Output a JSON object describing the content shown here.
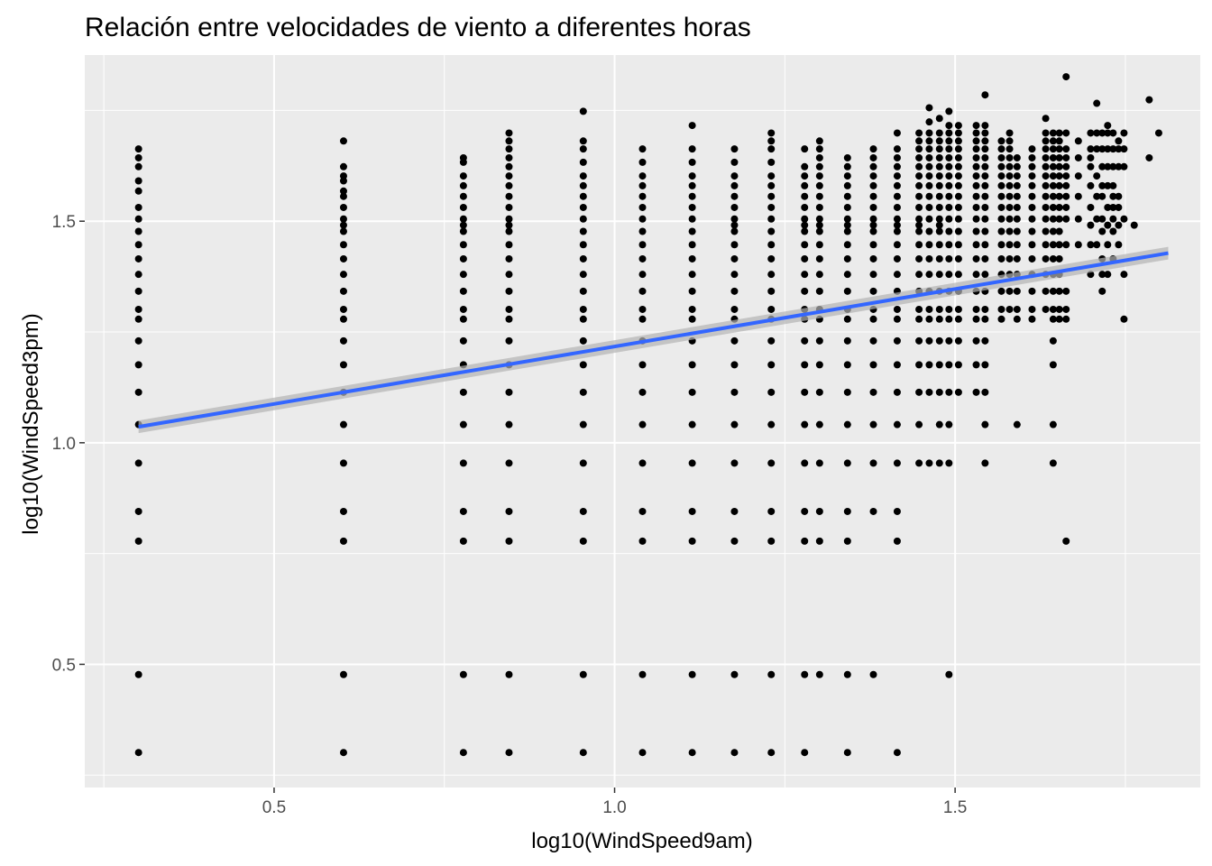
{
  "chart_data": {
    "type": "scatter",
    "title": "Relación entre velocidades de viento a diferentes horas",
    "xlabel": "log10(WindSpeed9am)",
    "ylabel": "log10(WindSpeed3pm)",
    "xlim": [
      0.222,
      1.86
    ],
    "ylim": [
      0.222,
      1.875
    ],
    "x_ticks": [
      0.5,
      1.0,
      1.5
    ],
    "x_tick_labels": [
      "0.5",
      "1.0",
      "1.5"
    ],
    "y_ticks": [
      0.5,
      1.0,
      1.5
    ],
    "y_tick_labels": [
      "0.5",
      "1.0",
      "1.5"
    ],
    "grid": true,
    "point_color": "#000000",
    "panel_background": "#EBEBEB",
    "grid_color": "#FFFFFF",
    "trend_line": {
      "method": "linear fit",
      "color": "#3366FF",
      "band_color": "#B3B3B3",
      "points": [
        [
          0.301,
          1.036
        ],
        [
          1.813,
          1.428
        ]
      ]
    },
    "columns": [
      {
        "x": 0.301,
        "y": [
          0.301,
          0.477,
          0.778,
          0.845,
          0.954,
          1.041,
          1.114,
          1.176,
          1.23,
          1.279,
          1.301,
          1.342,
          1.38,
          1.415,
          1.447,
          1.477,
          1.505,
          1.531,
          1.568,
          1.591,
          1.623,
          1.643,
          1.663
        ]
      },
      {
        "x": 0.602,
        "y": [
          0.301,
          0.477,
          0.778,
          0.845,
          0.954,
          1.041,
          1.114,
          1.176,
          1.23,
          1.279,
          1.301,
          1.342,
          1.38,
          1.415,
          1.447,
          1.477,
          1.491,
          1.505,
          1.531,
          1.556,
          1.568,
          1.591,
          1.602,
          1.623,
          1.681
        ]
      },
      {
        "x": 0.778,
        "y": [
          0.301,
          0.477,
          0.778,
          0.845,
          0.954,
          1.041,
          1.114,
          1.176,
          1.23,
          1.279,
          1.301,
          1.342,
          1.38,
          1.415,
          1.447,
          1.477,
          1.491,
          1.505,
          1.531,
          1.556,
          1.58,
          1.602,
          1.633,
          1.643
        ]
      },
      {
        "x": 0.845,
        "y": [
          0.301,
          0.477,
          0.778,
          0.845,
          0.954,
          1.041,
          1.114,
          1.176,
          1.23,
          1.279,
          1.301,
          1.342,
          1.38,
          1.415,
          1.447,
          1.477,
          1.491,
          1.505,
          1.531,
          1.556,
          1.58,
          1.602,
          1.623,
          1.643,
          1.663,
          1.681,
          1.699
        ]
      },
      {
        "x": 0.954,
        "y": [
          0.301,
          0.477,
          0.778,
          0.845,
          0.954,
          1.041,
          1.114,
          1.176,
          1.23,
          1.279,
          1.301,
          1.342,
          1.38,
          1.415,
          1.447,
          1.477,
          1.505,
          1.531,
          1.556,
          1.58,
          1.602,
          1.633,
          1.663,
          1.681,
          1.748
        ]
      },
      {
        "x": 1.041,
        "y": [
          0.301,
          0.477,
          0.778,
          0.845,
          0.954,
          1.041,
          1.114,
          1.176,
          1.23,
          1.279,
          1.301,
          1.342,
          1.38,
          1.415,
          1.447,
          1.477,
          1.505,
          1.531,
          1.556,
          1.58,
          1.602,
          1.633,
          1.663
        ]
      },
      {
        "x": 1.114,
        "y": [
          0.301,
          0.477,
          0.778,
          0.845,
          0.954,
          1.041,
          1.114,
          1.176,
          1.23,
          1.279,
          1.301,
          1.342,
          1.38,
          1.415,
          1.447,
          1.477,
          1.505,
          1.531,
          1.556,
          1.58,
          1.602,
          1.633,
          1.663,
          1.716
        ]
      },
      {
        "x": 1.176,
        "y": [
          0.301,
          0.477,
          0.778,
          0.845,
          0.954,
          1.041,
          1.114,
          1.176,
          1.23,
          1.279,
          1.301,
          1.342,
          1.38,
          1.415,
          1.447,
          1.477,
          1.491,
          1.505,
          1.531,
          1.556,
          1.58,
          1.602,
          1.633,
          1.663
        ]
      },
      {
        "x": 1.23,
        "y": [
          0.301,
          0.477,
          0.778,
          0.845,
          0.954,
          1.041,
          1.114,
          1.176,
          1.23,
          1.279,
          1.301,
          1.342,
          1.38,
          1.415,
          1.447,
          1.477,
          1.505,
          1.531,
          1.556,
          1.58,
          1.602,
          1.633,
          1.663,
          1.681,
          1.699
        ]
      },
      {
        "x": 1.279,
        "y": [
          0.301,
          0.477,
          0.778,
          0.845,
          0.954,
          1.041,
          1.114,
          1.176,
          1.23,
          1.279,
          1.301,
          1.342,
          1.38,
          1.415,
          1.447,
          1.477,
          1.491,
          1.505,
          1.531,
          1.556,
          1.58,
          1.602,
          1.623,
          1.663
        ]
      },
      {
        "x": 1.301,
        "y": [
          0.477,
          0.778,
          0.845,
          0.954,
          1.041,
          1.114,
          1.176,
          1.23,
          1.279,
          1.301,
          1.342,
          1.38,
          1.415,
          1.447,
          1.477,
          1.491,
          1.505,
          1.531,
          1.556,
          1.58,
          1.602,
          1.623,
          1.643,
          1.663,
          1.681
        ]
      },
      {
        "x": 1.342,
        "y": [
          0.301,
          0.477,
          0.778,
          0.845,
          0.954,
          1.041,
          1.114,
          1.176,
          1.23,
          1.279,
          1.301,
          1.342,
          1.38,
          1.415,
          1.447,
          1.477,
          1.491,
          1.505,
          1.531,
          1.556,
          1.58,
          1.602,
          1.623,
          1.643
        ]
      },
      {
        "x": 1.38,
        "y": [
          0.477,
          0.845,
          0.954,
          1.041,
          1.114,
          1.176,
          1.23,
          1.279,
          1.301,
          1.342,
          1.38,
          1.415,
          1.447,
          1.477,
          1.491,
          1.505,
          1.531,
          1.556,
          1.58,
          1.602,
          1.623,
          1.643,
          1.663
        ]
      },
      {
        "x": 1.415,
        "y": [
          0.301,
          0.778,
          0.845,
          0.954,
          1.041,
          1.114,
          1.176,
          1.23,
          1.279,
          1.301,
          1.342,
          1.38,
          1.415,
          1.447,
          1.477,
          1.491,
          1.505,
          1.531,
          1.556,
          1.58,
          1.602,
          1.623,
          1.643,
          1.663,
          1.699
        ]
      },
      {
        "x": 1.447,
        "y": [
          0.954,
          1.041,
          1.114,
          1.176,
          1.23,
          1.279,
          1.301,
          1.342,
          1.38,
          1.415,
          1.447,
          1.477,
          1.491,
          1.505,
          1.531,
          1.556,
          1.58,
          1.602,
          1.623,
          1.643,
          1.663,
          1.681,
          1.699
        ]
      },
      {
        "x": 1.462,
        "y": [
          0.954,
          1.114,
          1.176,
          1.23,
          1.279,
          1.301,
          1.342,
          1.38,
          1.415,
          1.447,
          1.477,
          1.505,
          1.531,
          1.556,
          1.58,
          1.602,
          1.623,
          1.643,
          1.663,
          1.681,
          1.699,
          1.724,
          1.756
        ]
      },
      {
        "x": 1.477,
        "y": [
          0.954,
          1.041,
          1.114,
          1.176,
          1.23,
          1.279,
          1.301,
          1.342,
          1.38,
          1.415,
          1.447,
          1.477,
          1.491,
          1.505,
          1.531,
          1.556,
          1.58,
          1.602,
          1.623,
          1.643,
          1.663,
          1.681,
          1.699,
          1.732
        ]
      },
      {
        "x": 1.491,
        "y": [
          0.477,
          0.954,
          1.041,
          1.114,
          1.176,
          1.23,
          1.279,
          1.301,
          1.342,
          1.38,
          1.415,
          1.447,
          1.477,
          1.505,
          1.531,
          1.556,
          1.58,
          1.602,
          1.623,
          1.643,
          1.663,
          1.681,
          1.699,
          1.716,
          1.748
        ]
      },
      {
        "x": 1.505,
        "y": [
          1.114,
          1.176,
          1.23,
          1.279,
          1.301,
          1.342,
          1.38,
          1.415,
          1.447,
          1.477,
          1.505,
          1.531,
          1.556,
          1.58,
          1.602,
          1.623,
          1.643,
          1.663,
          1.681,
          1.699,
          1.716
        ]
      },
      {
        "x": 1.531,
        "y": [
          1.114,
          1.176,
          1.23,
          1.279,
          1.301,
          1.342,
          1.38,
          1.415,
          1.447,
          1.477,
          1.505,
          1.531,
          1.556,
          1.58,
          1.602,
          1.623,
          1.643,
          1.663,
          1.681,
          1.699,
          1.716
        ]
      },
      {
        "x": 1.544,
        "y": [
          0.954,
          1.041,
          1.114,
          1.176,
          1.23,
          1.279,
          1.301,
          1.342,
          1.38,
          1.415,
          1.447,
          1.477,
          1.505,
          1.531,
          1.556,
          1.58,
          1.602,
          1.623,
          1.643,
          1.663,
          1.681,
          1.699,
          1.716,
          1.785
        ]
      },
      {
        "x": 1.568,
        "y": [
          1.279,
          1.301,
          1.342,
          1.38,
          1.415,
          1.447,
          1.477,
          1.505,
          1.531,
          1.556,
          1.58,
          1.602,
          1.623,
          1.643,
          1.663,
          1.681
        ]
      },
      {
        "x": 1.58,
        "y": [
          1.301,
          1.342,
          1.38,
          1.415,
          1.447,
          1.477,
          1.505,
          1.531,
          1.556,
          1.58,
          1.602,
          1.623,
          1.643,
          1.663,
          1.681,
          1.699
        ]
      },
      {
        "x": 1.591,
        "y": [
          1.041,
          1.279,
          1.301,
          1.342,
          1.38,
          1.415,
          1.447,
          1.477,
          1.505,
          1.531,
          1.556,
          1.58,
          1.602,
          1.623,
          1.643
        ]
      },
      {
        "x": 1.613,
        "y": [
          1.279,
          1.301,
          1.342,
          1.38,
          1.415,
          1.447,
          1.477,
          1.505,
          1.531,
          1.556,
          1.58,
          1.602,
          1.623,
          1.643,
          1.663
        ]
      },
      {
        "x": 1.633,
        "y": [
          1.301,
          1.342,
          1.38,
          1.415,
          1.447,
          1.477,
          1.505,
          1.531,
          1.556,
          1.58,
          1.602,
          1.623,
          1.643,
          1.663,
          1.681,
          1.699,
          1.732
        ]
      },
      {
        "x": 1.644,
        "y": [
          0.954,
          1.041,
          1.176,
          1.23,
          1.279,
          1.301,
          1.342,
          1.38,
          1.415,
          1.447,
          1.477,
          1.505,
          1.531,
          1.556,
          1.58,
          1.602,
          1.623,
          1.643,
          1.663,
          1.681,
          1.699
        ]
      },
      {
        "x": 1.653,
        "y": [
          1.279,
          1.301,
          1.342,
          1.38,
          1.415,
          1.447,
          1.477,
          1.505,
          1.531,
          1.556,
          1.58,
          1.602,
          1.623,
          1.643,
          1.663,
          1.681,
          1.699
        ]
      },
      {
        "x": 1.663,
        "y": [
          0.778,
          1.279,
          1.301,
          1.342,
          1.447,
          1.505,
          1.531,
          1.556,
          1.58,
          1.602,
          1.623,
          1.643,
          1.663,
          1.699,
          1.826
        ]
      },
      {
        "x": 1.681,
        "y": [
          1.447,
          1.505,
          1.556,
          1.602,
          1.643,
          1.681
        ]
      },
      {
        "x": 1.699,
        "y": [
          1.38,
          1.447,
          1.491,
          1.531,
          1.58,
          1.623,
          1.643,
          1.663,
          1.699
        ]
      },
      {
        "x": 1.708,
        "y": [
          1.447,
          1.505,
          1.556,
          1.602,
          1.663,
          1.699,
          1.766
        ]
      },
      {
        "x": 1.716,
        "y": [
          1.342,
          1.38,
          1.415,
          1.477,
          1.505,
          1.556,
          1.58,
          1.623,
          1.663,
          1.699
        ]
      },
      {
        "x": 1.724,
        "y": [
          1.38,
          1.447,
          1.491,
          1.531,
          1.58,
          1.623,
          1.663,
          1.699,
          1.716
        ]
      },
      {
        "x": 1.732,
        "y": [
          1.415,
          1.477,
          1.505,
          1.531,
          1.556,
          1.58,
          1.623,
          1.663,
          1.699
        ]
      },
      {
        "x": 1.74,
        "y": [
          1.447,
          1.491,
          1.531,
          1.556,
          1.623,
          1.663,
          1.681
        ]
      },
      {
        "x": 1.748,
        "y": [
          1.279,
          1.38,
          1.505,
          1.623,
          1.663,
          1.699
        ]
      },
      {
        "x": 1.763,
        "y": [
          1.491
        ]
      },
      {
        "x": 1.785,
        "y": [
          1.643,
          1.774
        ]
      },
      {
        "x": 1.799,
        "y": [
          1.699
        ]
      }
    ]
  }
}
